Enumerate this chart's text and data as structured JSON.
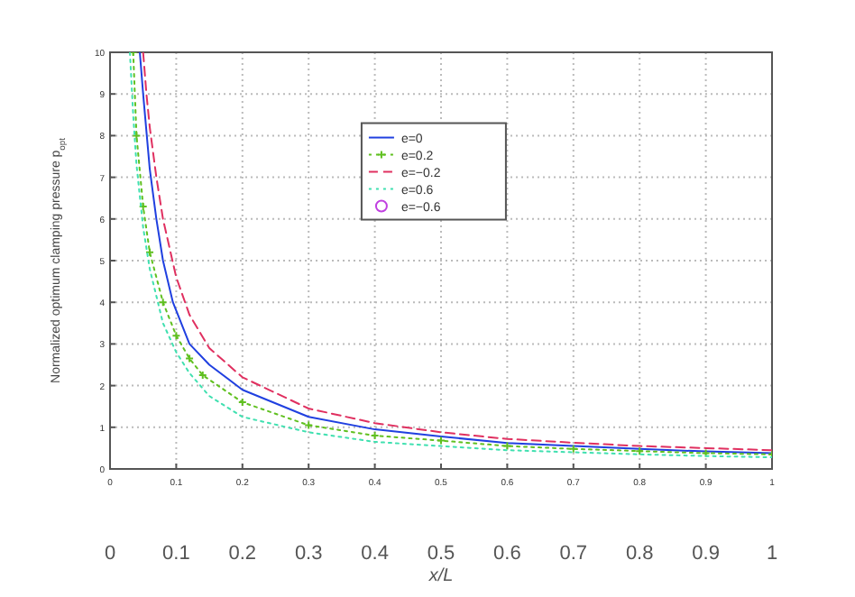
{
  "chart_data": {
    "type": "line",
    "x2label": "x/L",
    "x2lim": [
      0,
      1
    ],
    "x2ticks": [
      0,
      0.1,
      0.2,
      0.3,
      0.4,
      0.5,
      0.6,
      0.7,
      0.8,
      0.9,
      1
    ],
    "ylabel": "Normalized optimum clamping pressure p$_{opt}$",
    "xlim": [
      0,
      1
    ],
    "ylim": [
      0,
      10
    ],
    "xticks": [
      0,
      0.1,
      0.2,
      0.3,
      0.4,
      0.5,
      0.6,
      0.7,
      0.8,
      0.9,
      1
    ],
    "yticks": [
      0,
      1,
      2,
      3,
      4,
      5,
      6,
      7,
      8,
      9,
      10
    ],
    "grid": true,
    "legend": "top",
    "series": [
      {
        "name": "e=0",
        "color": "#2040e0",
        "line_style": "solid",
        "marker": "none",
        "x": [
          0.045,
          0.05,
          0.06,
          0.07,
          0.08,
          0.095,
          0.12,
          0.15,
          0.2,
          0.3,
          0.4,
          0.5,
          0.6,
          0.7,
          0.8,
          0.9,
          1
        ],
        "values": [
          10,
          9,
          7.2,
          6,
          5,
          4,
          3,
          2.5,
          1.9,
          1.25,
          0.95,
          0.78,
          0.62,
          0.55,
          0.48,
          0.42,
          0.38
        ]
      },
      {
        "name": "e=0.2",
        "color": "#60c020",
        "line_style": "dotted",
        "marker": "cross",
        "x": [
          0.035,
          0.04,
          0.05,
          0.06,
          0.08,
          0.1,
          0.12,
          0.14,
          0.2,
          0.3,
          0.4,
          0.5,
          0.6,
          0.7,
          0.8,
          0.9,
          1
        ],
        "values": [
          10,
          8,
          6.3,
          5.2,
          4,
          3.2,
          2.65,
          2.25,
          1.6,
          1.05,
          0.8,
          0.68,
          0.55,
          0.48,
          0.43,
          0.38,
          0.35
        ]
      },
      {
        "name": "e=−0.2",
        "color": "#e03060",
        "line_style": "dashed",
        "marker": "none",
        "x": [
          0.05,
          0.055,
          0.06,
          0.07,
          0.08,
          0.1,
          0.12,
          0.15,
          0.2,
          0.3,
          0.4,
          0.5,
          0.6,
          0.7,
          0.8,
          0.9,
          1
        ],
        "values": [
          10,
          9,
          8.2,
          7,
          6,
          4.6,
          3.7,
          2.9,
          2.2,
          1.45,
          1.1,
          0.88,
          0.72,
          0.63,
          0.55,
          0.5,
          0.45
        ]
      },
      {
        "name": "e=0.6",
        "color": "#40e0b0",
        "line_style": "dotted",
        "marker": "none",
        "x": [
          0.03,
          0.035,
          0.04,
          0.05,
          0.06,
          0.08,
          0.1,
          0.12,
          0.15,
          0.2,
          0.3,
          0.4,
          0.5,
          0.6,
          0.7,
          0.8,
          0.9,
          1
        ],
        "values": [
          10,
          8.5,
          7.3,
          5.8,
          4.8,
          3.5,
          2.8,
          2.3,
          1.75,
          1.25,
          0.88,
          0.65,
          0.55,
          0.45,
          0.4,
          0.35,
          0.31,
          0.28
        ]
      },
      {
        "name": "e=−0.6",
        "color": "#c040e0",
        "line_style": "none",
        "marker": "circle"
      }
    ]
  }
}
